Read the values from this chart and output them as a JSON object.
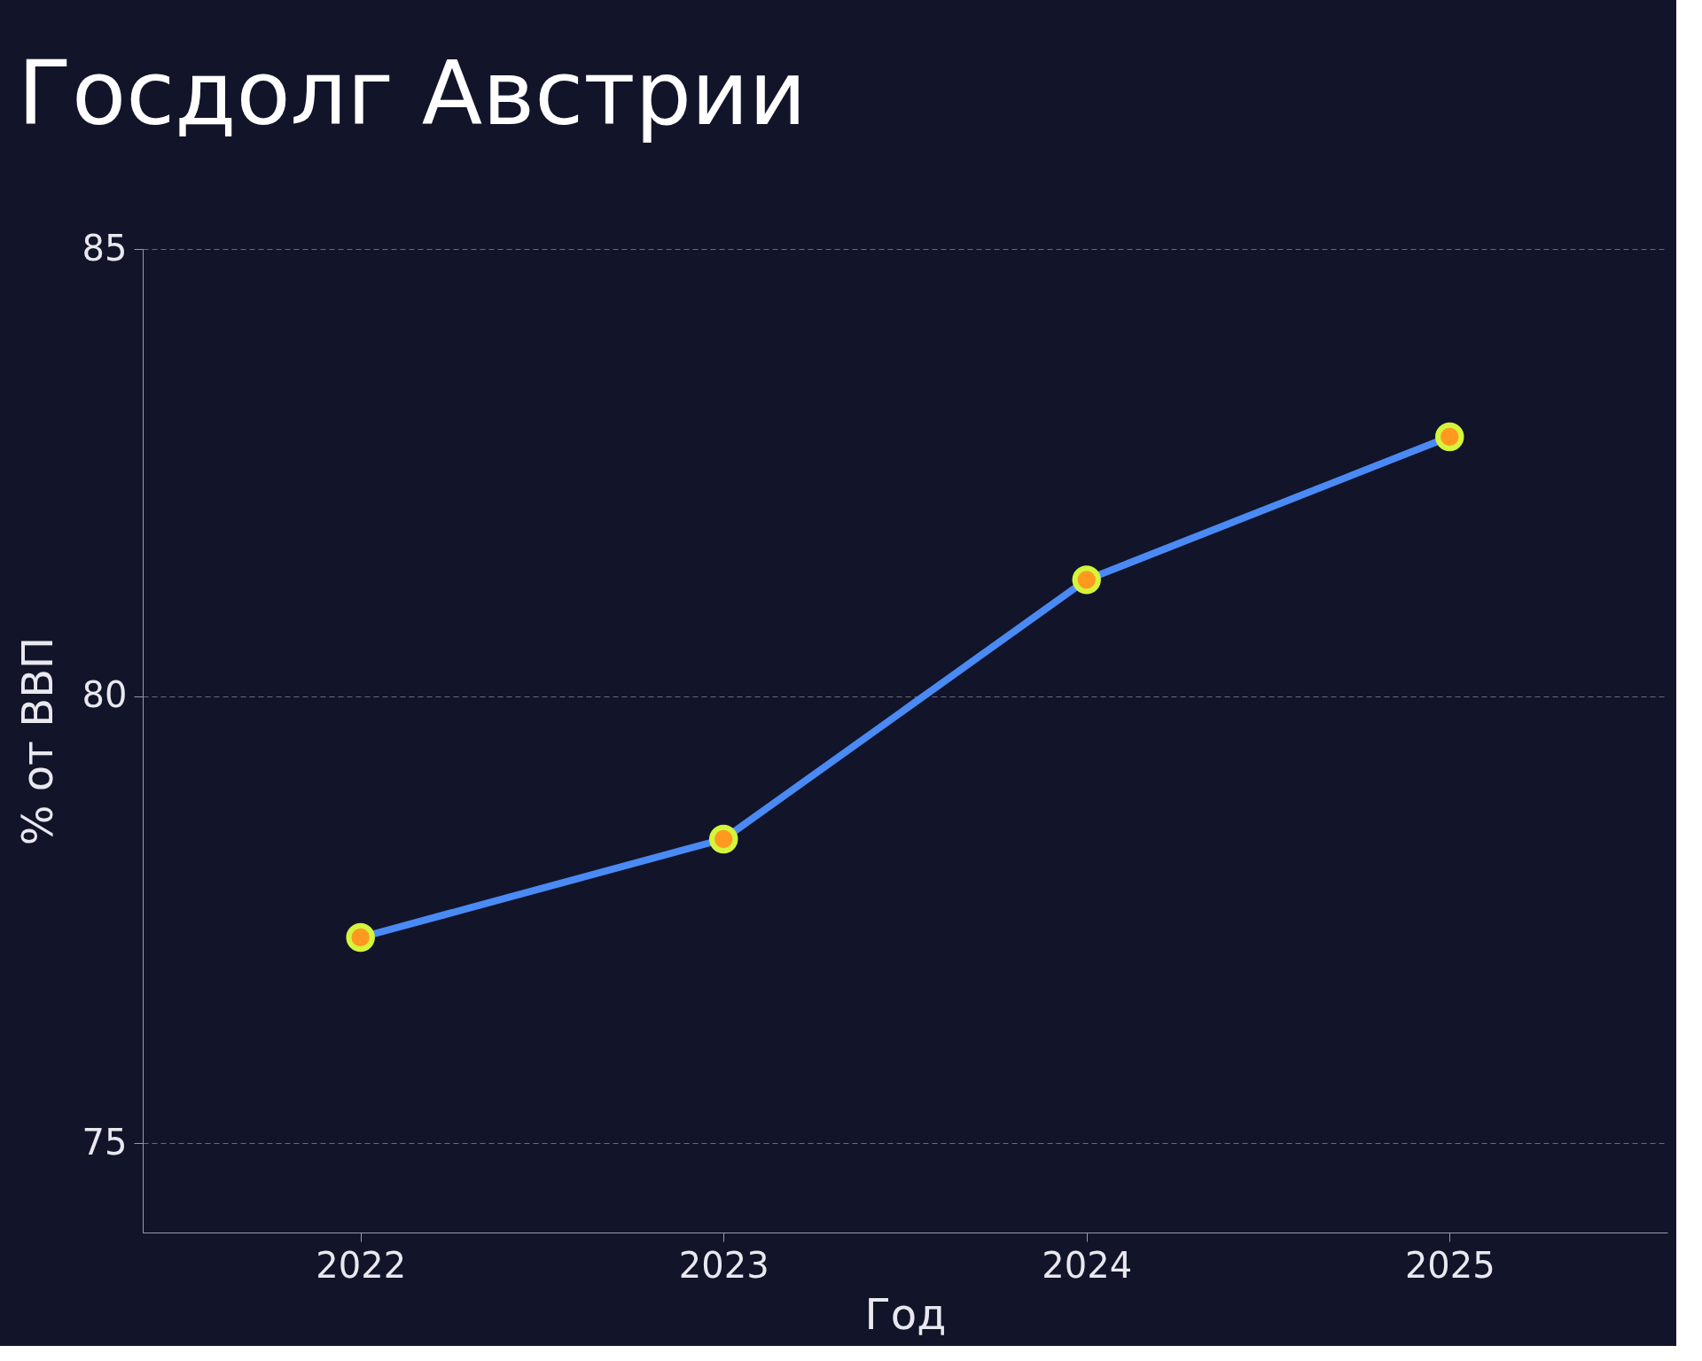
{
  "chart_data": {
    "type": "line",
    "title": "Госдолг Австрии",
    "xlabel": "Год",
    "ylabel": "% от ВВП",
    "categories": [
      "2022",
      "2023",
      "2024",
      "2025"
    ],
    "series": [
      {
        "color": "#4a8af4",
        "values": [
          77.3,
          78.4,
          81.3,
          82.9
        ]
      }
    ],
    "ylim": [
      74,
      85
    ],
    "yticks": [
      75,
      80,
      85
    ],
    "grid": "y",
    "marker": "circle",
    "line_style": "solid"
  }
}
